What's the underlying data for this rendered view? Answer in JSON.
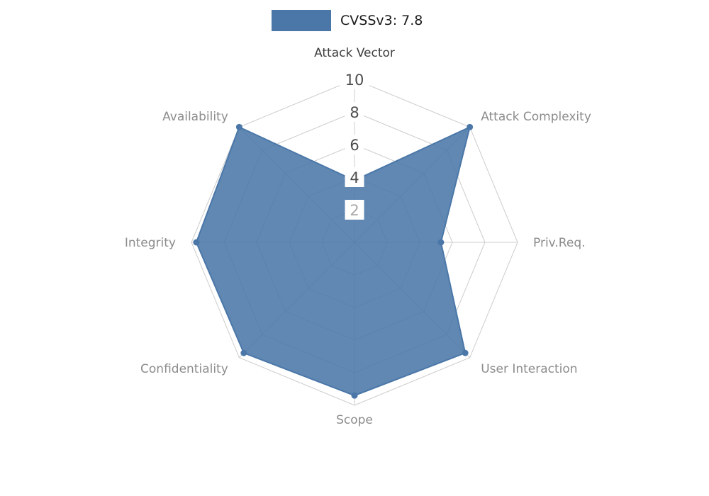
{
  "legend": {
    "label": "CVSSv3: 7.8",
    "swatch_color": "#4a77a8"
  },
  "chart_data": {
    "type": "radar",
    "title": "CVSSv3: 7.8",
    "categories": [
      "Attack Vector",
      "Attack Complexity",
      "Priv.Req.",
      "User Interaction",
      "Scope",
      "Confidentiality",
      "Integrity",
      "Availability"
    ],
    "values": [
      3.8,
      10,
      5.3,
      9.6,
      9.4,
      9.6,
      9.7,
      10
    ],
    "radial_ticks": [
      2,
      4,
      6,
      8,
      10
    ],
    "r_max": 10,
    "start_axis": "top",
    "direction": "clockwise",
    "grid": true,
    "legend_position": "top",
    "fill_color": "#4a77a8",
    "fill_opacity": 0.88,
    "grid_color": "#cccccc",
    "tick_color": "#4d4d4d",
    "tick_color_muted": "#a9a9a9",
    "axis_label_color": "#8c8c8c",
    "axis_label_primary_color": "#3d3d3d"
  }
}
